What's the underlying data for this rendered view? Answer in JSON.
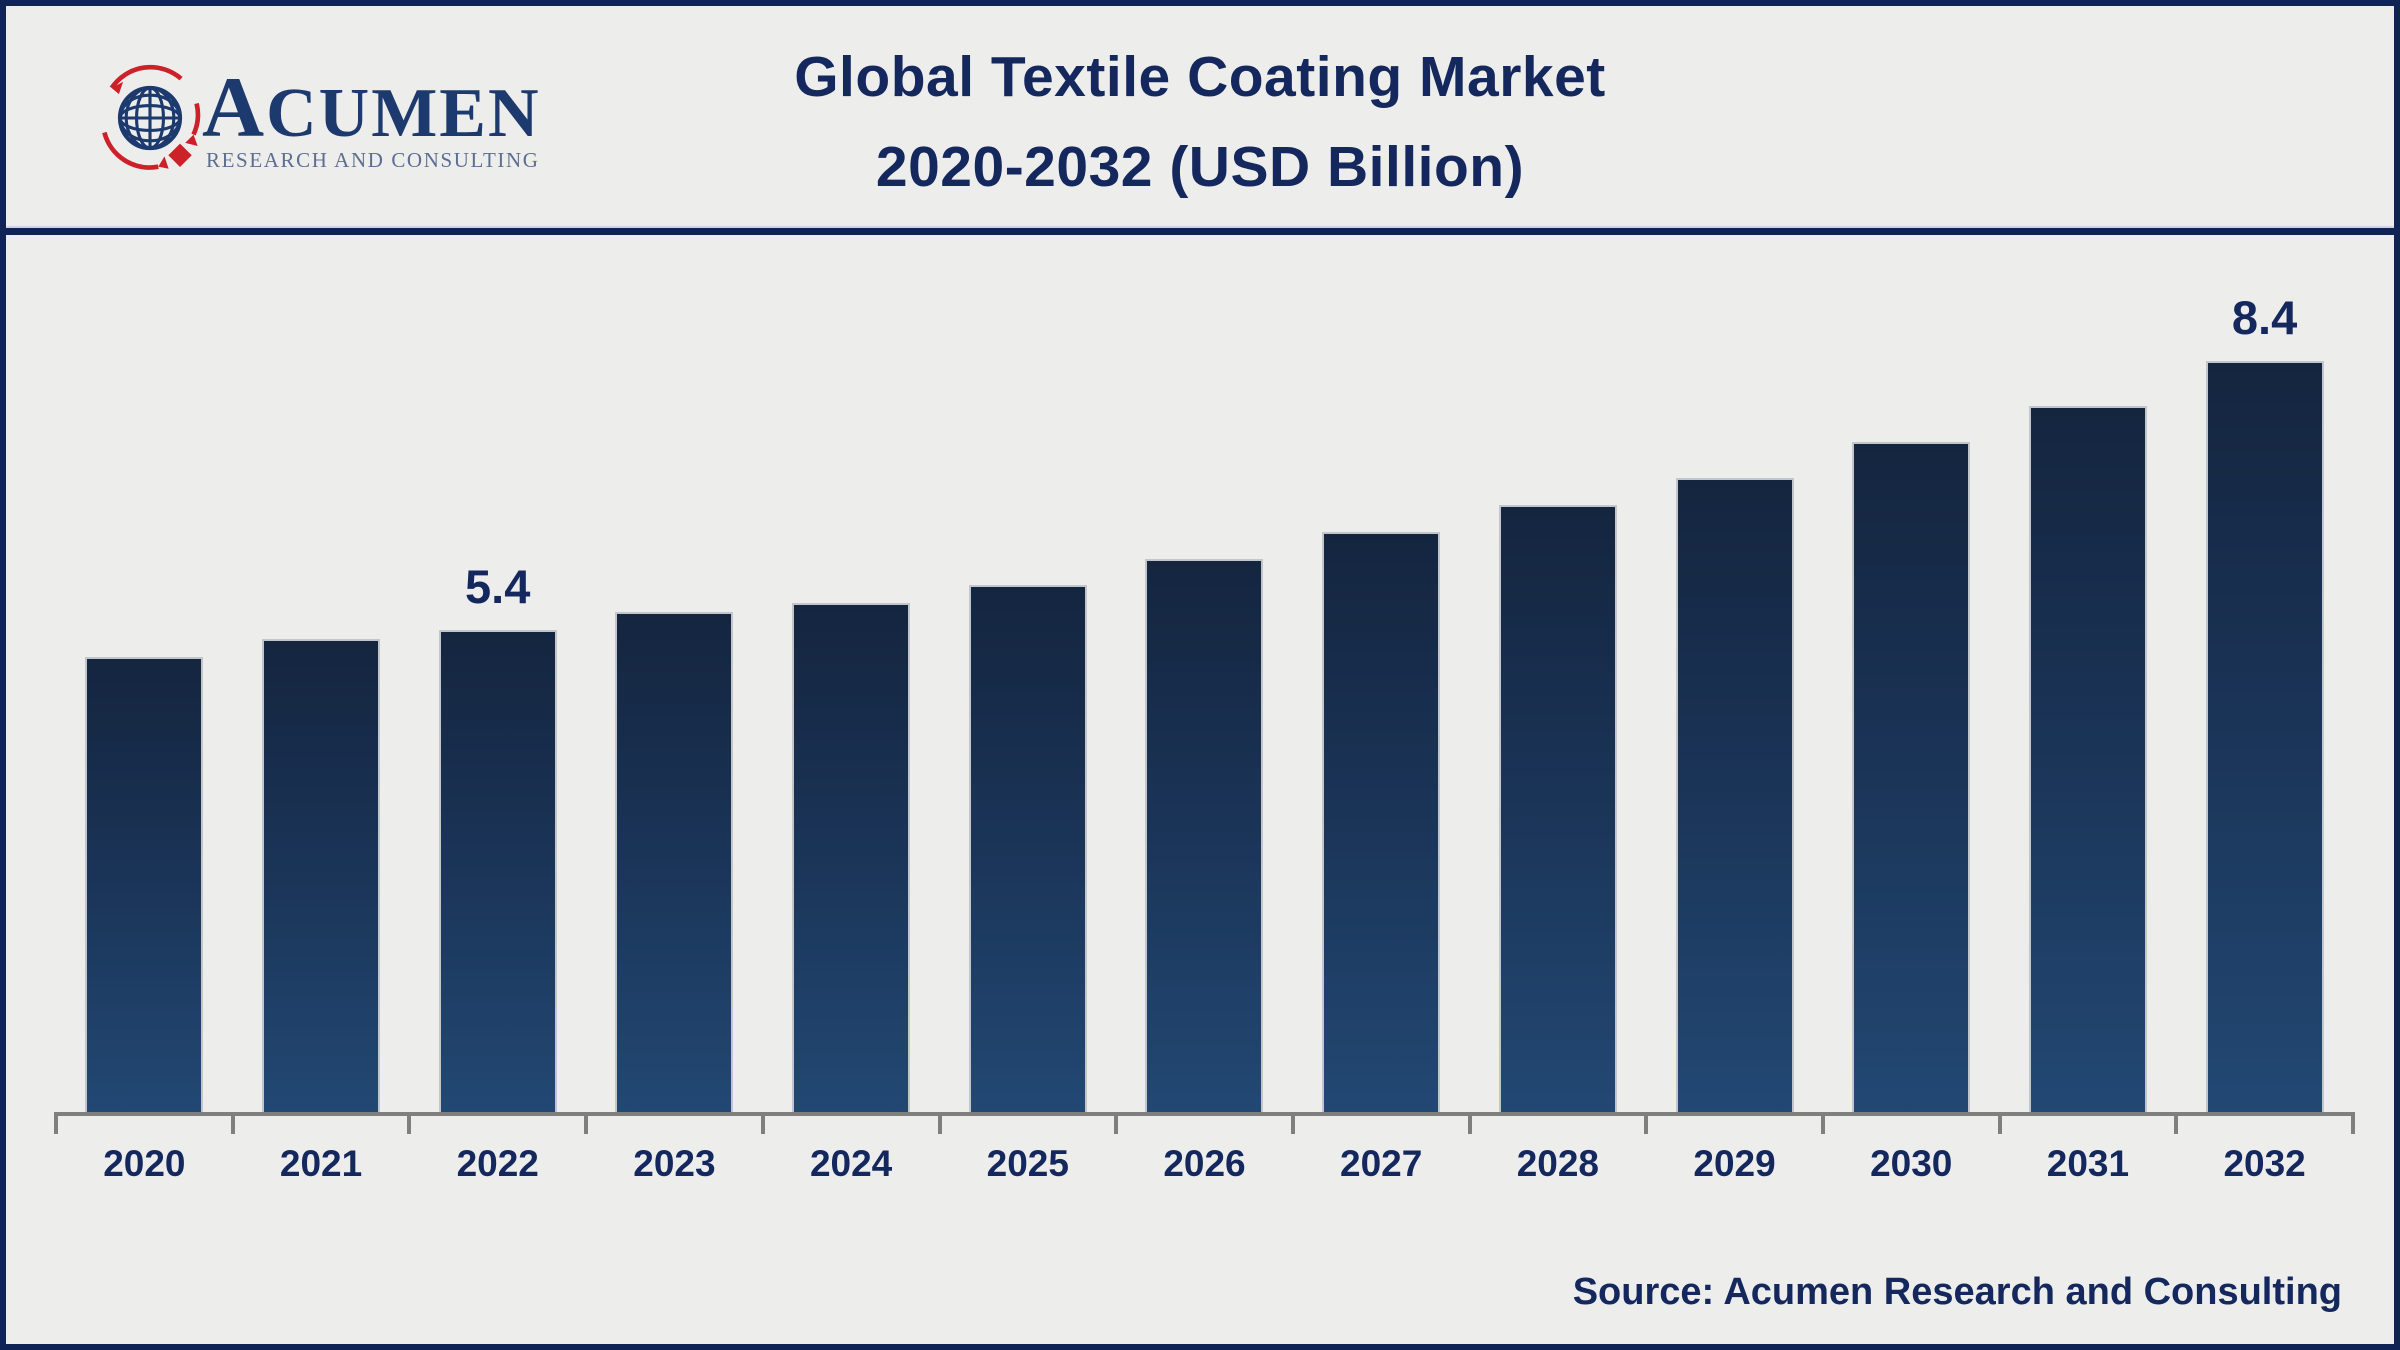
{
  "header": {
    "logo": {
      "name": "ACUMEN",
      "tagline": "RESEARCH AND CONSULTING"
    },
    "title_line1": "Global Textile Coating Market",
    "title_line2": "2020-2032 (USD Billion)"
  },
  "chart_data": {
    "type": "bar",
    "title": "Global Textile Coating Market 2020-2032 (USD Billion)",
    "unit": "USD Billion",
    "categories": [
      "2020",
      "2021",
      "2022",
      "2023",
      "2024",
      "2025",
      "2026",
      "2027",
      "2028",
      "2029",
      "2030",
      "2031",
      "2032"
    ],
    "values": [
      5.1,
      5.3,
      5.4,
      5.6,
      5.7,
      5.9,
      6.2,
      6.5,
      6.8,
      7.1,
      7.5,
      7.9,
      8.4
    ],
    "data_labels": {
      "2022": "5.4",
      "2032": "8.4"
    },
    "xlabel": "",
    "ylabel": "",
    "ylim": [
      0,
      9
    ],
    "grid": false,
    "legend": false,
    "bar_color_top": "#14253f",
    "bar_color_bottom": "#224873"
  },
  "footer": {
    "source": "Source: Acumen Research and Consulting"
  },
  "colors": {
    "background": "#ededec",
    "frame_border": "#102355",
    "title_text": "#14285e",
    "axis_gray": "#7f7f7f",
    "logo_navy": "#1d3a6e",
    "logo_red": "#cc2129",
    "logo_gray": "#5d6e90"
  }
}
